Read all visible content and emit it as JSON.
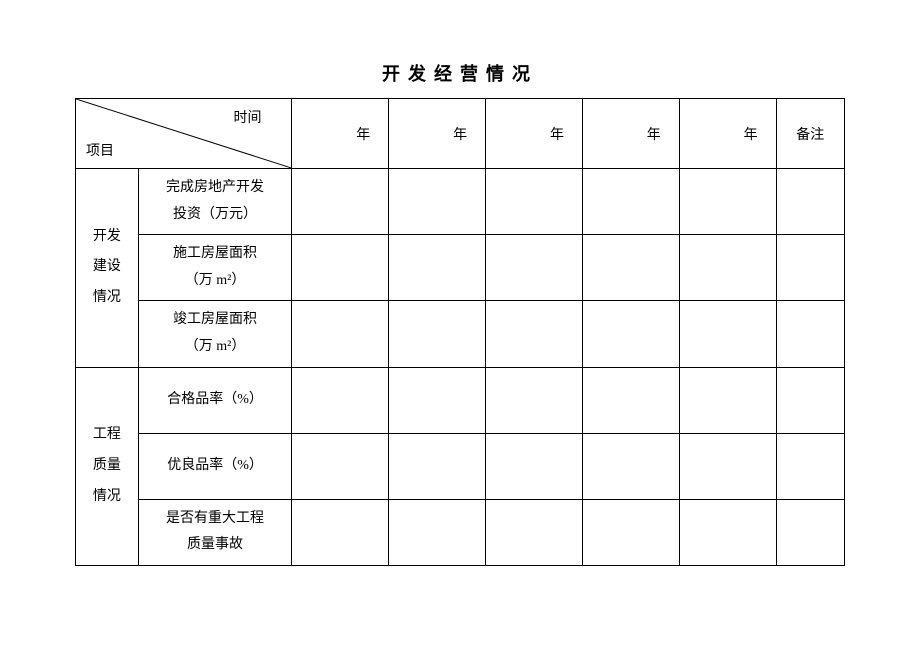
{
  "title": "开发经营情况",
  "header": {
    "diagonal": {
      "top_right": "时间",
      "bottom_left": "项目"
    },
    "year_cols": [
      "年",
      "年",
      "年",
      "年",
      "年"
    ],
    "remark": "备注"
  },
  "sections": [
    {
      "category": "开发建设情况",
      "rows": [
        {
          "label_line1": "完成房地产开发",
          "label_line2": "投资（万元）",
          "values": [
            "",
            "",
            "",
            "",
            ""
          ],
          "remark": ""
        },
        {
          "label_line1": "施工房屋面积",
          "label_line2": "（万 m²）",
          "values": [
            "",
            "",
            "",
            "",
            ""
          ],
          "remark": ""
        },
        {
          "label_line1": "竣工房屋面积",
          "label_line2": "（万 m²）",
          "values": [
            "",
            "",
            "",
            "",
            ""
          ],
          "remark": ""
        }
      ]
    },
    {
      "category": "工程质量情况",
      "rows": [
        {
          "label_line1": "合格品率（%）",
          "label_line2": "",
          "values": [
            "",
            "",
            "",
            "",
            ""
          ],
          "remark": ""
        },
        {
          "label_line1": "优良品率（%）",
          "label_line2": "",
          "values": [
            "",
            "",
            "",
            "",
            ""
          ],
          "remark": ""
        },
        {
          "label_line1": "是否有重大工程",
          "label_line2": "质量事故",
          "values": [
            "",
            "",
            "",
            "",
            ""
          ],
          "remark": ""
        }
      ]
    }
  ]
}
